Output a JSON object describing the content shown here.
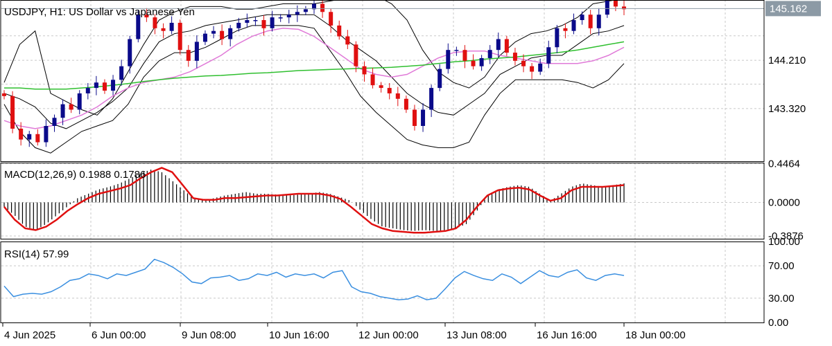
{
  "chart_data": {
    "type": "candlestick",
    "title": "USDJPY, H1:  US Dollar vs Japanese Yen",
    "current_price": 145.162,
    "current_price_label": "145.162",
    "x_labels": [
      "4 Jun 2025",
      "6 Jun 00:00",
      "9 Jun 08:00",
      "10 Jun 16:00",
      "12 Jun 00:00",
      "13 Jun 08:00",
      "16 Jun 16:00",
      "18 Jun 00:00"
    ],
    "price": {
      "ylim": [
        142.35,
        145.32
      ],
      "ticks": [
        "144.210",
        "143.320"
      ],
      "tick_values": [
        144.21,
        143.32
      ],
      "close": [
        143.55,
        142.95,
        142.75,
        142.85,
        142.7,
        143.0,
        143.15,
        143.4,
        143.3,
        143.6,
        143.7,
        143.8,
        143.65,
        143.85,
        144.1,
        144.6,
        145.05,
        145.0,
        144.8,
        144.75,
        144.9,
        144.4,
        144.2,
        144.55,
        144.7,
        144.75,
        144.6,
        144.8,
        144.9,
        144.95,
        144.95,
        144.8,
        145.0,
        145.0,
        145.05,
        145.1,
        145.15,
        145.25,
        145.1,
        144.85,
        144.65,
        144.5,
        144.1,
        143.95,
        143.75,
        143.7,
        143.6,
        143.5,
        143.3,
        143.0,
        143.3,
        143.7,
        144.05,
        144.4,
        144.4,
        144.2,
        144.1,
        144.25,
        144.4,
        144.6,
        144.35,
        144.2,
        144.1,
        144.0,
        144.15,
        144.45,
        144.8,
        144.75,
        144.95,
        145.05,
        144.8,
        145.05,
        145.35,
        145.2,
        145.15
      ],
      "bb_upper": [
        143.8,
        144.5,
        144.75,
        143.6,
        143.45,
        143.3,
        143.2,
        143.5,
        144.0,
        144.5,
        144.95,
        145.1,
        145.2,
        145.2,
        145.2,
        145.15,
        145.15,
        145.2,
        145.25,
        145.25,
        145.25,
        145.3,
        145.35,
        145.4,
        145.4,
        145.25,
        144.95,
        144.4,
        144.0,
        143.8,
        143.7,
        143.9,
        144.3,
        144.55,
        144.7,
        144.75,
        144.85,
        145.0,
        145.25,
        145.3,
        145.35
      ],
      "bb_lower": [
        143.4,
        142.9,
        142.6,
        142.5,
        142.7,
        142.9,
        143.0,
        143.1,
        143.4,
        143.9,
        144.2,
        144.35,
        144.35,
        144.45,
        144.6,
        144.75,
        144.85,
        144.85,
        144.85,
        144.85,
        144.8,
        144.4,
        144.0,
        143.55,
        143.25,
        143.0,
        142.75,
        142.65,
        142.6,
        142.6,
        142.7,
        143.2,
        143.6,
        143.85,
        143.85,
        143.85,
        143.85,
        143.8,
        143.7,
        143.85,
        144.15
      ],
      "bb_mid": [
        143.6,
        143.5,
        143.35,
        143.05,
        142.95,
        143.1,
        143.25,
        143.45,
        143.7,
        144.15,
        144.55,
        144.7,
        144.75,
        144.85,
        144.9,
        144.95,
        145.0,
        145.05,
        145.05,
        145.05,
        145.05,
        144.85,
        144.6,
        144.4,
        144.2,
        143.9,
        143.6,
        143.4,
        143.25,
        143.2,
        143.4,
        143.6,
        143.95,
        144.1,
        144.25,
        144.3,
        144.3,
        144.5,
        144.7,
        144.75,
        144.85
      ],
      "ma_pink": [
        143.1,
        143.0,
        142.95,
        143.0,
        143.1,
        143.2,
        143.35,
        143.55,
        143.7,
        143.8,
        143.85,
        143.9,
        144.0,
        144.15,
        144.3,
        144.5,
        144.65,
        144.75,
        144.8,
        144.78,
        144.65,
        144.45,
        144.25,
        144.05,
        143.95,
        143.9,
        143.95,
        144.1,
        144.25,
        144.35,
        144.38,
        144.38,
        144.3,
        144.25,
        144.2,
        144.15,
        144.15,
        144.15,
        144.2,
        144.3,
        144.45
      ],
      "ma_green": [
        143.7,
        143.7,
        143.68,
        143.68,
        143.68,
        143.7,
        143.72,
        143.75,
        143.78,
        143.82,
        143.85,
        143.88,
        143.9,
        143.92,
        143.93,
        143.95,
        143.97,
        143.98,
        144.0,
        144.02,
        144.03,
        144.04,
        144.05,
        144.06,
        144.07,
        144.08,
        144.1,
        144.12,
        144.15,
        144.18,
        144.2,
        144.23,
        144.25,
        144.27,
        144.3,
        144.33,
        144.36,
        144.4,
        144.45,
        144.5,
        144.55
      ]
    },
    "macd": {
      "title": "MACD(12,26,9) 0.1988 0.1786",
      "ylim": [
        -0.42,
        0.46
      ],
      "ticks": [
        "0.4464",
        "0.0000",
        "-0.3876"
      ],
      "tick_values": [
        0.4464,
        0.0,
        -0.3876
      ],
      "histogram": [
        -0.05,
        -0.15,
        -0.28,
        -0.32,
        -0.25,
        -0.15,
        -0.05,
        0.05,
        0.1,
        0.15,
        0.18,
        0.22,
        0.28,
        0.34,
        0.38,
        0.35,
        0.25,
        0.15,
        0.05,
        0.02,
        0.05,
        0.08,
        0.1,
        0.12,
        0.1,
        0.1,
        0.09,
        0.08,
        0.09,
        0.1,
        0.12,
        0.1,
        0.06,
        0.02,
        -0.1,
        -0.2,
        -0.28,
        -0.3,
        -0.32,
        -0.33,
        -0.32,
        -0.33,
        -0.32,
        -0.3,
        -0.25,
        -0.1,
        0.08,
        0.15,
        0.18,
        0.2,
        0.18,
        0.1,
        0.02,
        0.1,
        0.18,
        0.22,
        0.2,
        0.18,
        0.2,
        0.22
      ],
      "signal": [
        -0.05,
        -0.2,
        -0.3,
        -0.32,
        -0.28,
        -0.2,
        -0.1,
        -0.02,
        0.05,
        0.1,
        0.13,
        0.16,
        0.2,
        0.28,
        0.35,
        0.4,
        0.35,
        0.2,
        0.05,
        0.03,
        0.03,
        0.05,
        0.05,
        0.06,
        0.07,
        0.08,
        0.08,
        0.09,
        0.1,
        0.1,
        0.1,
        0.08,
        0.04,
        -0.05,
        -0.15,
        -0.25,
        -0.3,
        -0.33,
        -0.34,
        -0.35,
        -0.35,
        -0.34,
        -0.33,
        -0.3,
        -0.2,
        -0.05,
        0.08,
        0.14,
        0.16,
        0.17,
        0.15,
        0.08,
        0.02,
        0.05,
        0.14,
        0.18,
        0.18,
        0.18,
        0.19,
        0.2
      ]
    },
    "rsi": {
      "title": "RSI(14) 57.99",
      "ylim": [
        0,
        100
      ],
      "ticks": [
        "100.00",
        "70.00",
        "30.00",
        "0.00"
      ],
      "tick_values": [
        100,
        70,
        30,
        0
      ],
      "values": [
        45,
        32,
        35,
        36,
        35,
        38,
        44,
        52,
        54,
        60,
        58,
        54,
        60,
        58,
        62,
        66,
        78,
        74,
        68,
        60,
        50,
        48,
        55,
        56,
        58,
        52,
        54,
        60,
        58,
        62,
        56,
        60,
        58,
        60,
        55,
        62,
        64,
        44,
        38,
        36,
        32,
        30,
        28,
        29,
        33,
        28,
        30,
        42,
        55,
        63,
        58,
        54,
        52,
        60,
        56,
        48,
        56,
        64,
        58,
        56,
        62,
        65,
        55,
        52,
        58,
        60,
        58
      ]
    }
  },
  "colors": {
    "bull": "#0a0a8a",
    "bear": "#e01010",
    "bollinger": "#000000",
    "ma_pink": "#e07ad8",
    "ma_green": "#2fbf2f",
    "macd_signal": "#e01010",
    "rsi": "#3a8fe0",
    "grid": "#c8c8c8",
    "price_badge": "#8c9aa5"
  }
}
